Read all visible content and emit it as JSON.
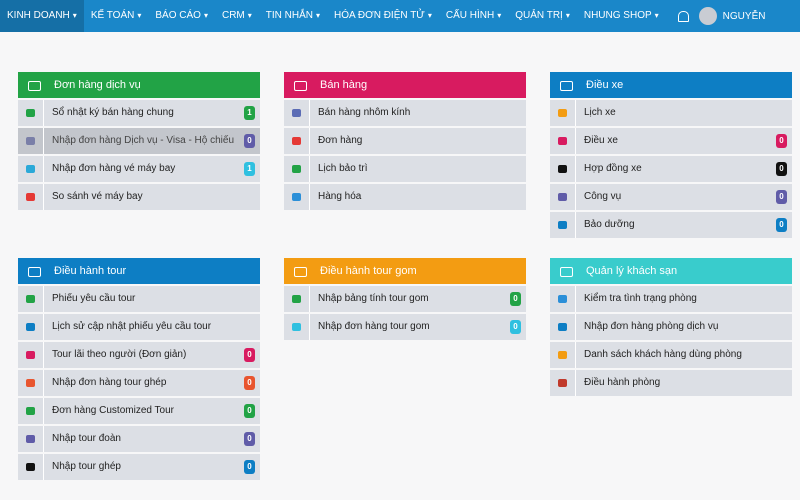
{
  "nav": {
    "items": [
      "KINH DOANH",
      "KẾ TOÁN",
      "BÁO CÁO",
      "CRM",
      "TIN NHẮN",
      "HÓA ĐƠN ĐIỆN TỬ",
      "CẤU HÌNH",
      "QUẢN TRỊ",
      "NHUNG SHOP"
    ],
    "user": "NGUYỄN"
  },
  "panels": [
    {
      "title": "Đơn hàng dịch vụ",
      "color": "#22a346",
      "items": [
        {
          "label": "Sổ nhật ký bán hàng chung",
          "icon": "#22a346",
          "badge": 1,
          "badge_color": "#22a346"
        },
        {
          "label": "Nhập đơn hàng Dịch vụ - Visa - Hộ chiếu",
          "icon": "#7a7fa8",
          "badge": 0,
          "badge_color": "#605ca8"
        },
        {
          "label": "Nhập đơn hàng vé máy bay",
          "icon": "#2ba9d8",
          "badge": 1,
          "badge_color": "#2fc0e0"
        },
        {
          "label": "So sánh vé máy bay",
          "icon": "#e53935"
        }
      ]
    },
    {
      "title": "Bán hàng",
      "color": "#d81b60",
      "items": [
        {
          "label": "Bán hàng nhôm kính",
          "icon": "#5b6cb5"
        },
        {
          "label": "Đơn hàng",
          "icon": "#e53935"
        },
        {
          "label": "Lịch bảo trì",
          "icon": "#22a346"
        },
        {
          "label": "Hàng hóa",
          "icon": "#2b8fd8"
        }
      ]
    },
    {
      "title": "Điều xe",
      "color": "#0d7ec4",
      "items": [
        {
          "label": "Lịch xe",
          "icon": "#f39c12"
        },
        {
          "label": "Điều xe",
          "icon": "#d81b60",
          "badge": 0,
          "badge_color": "#d81b60"
        },
        {
          "label": "Hợp đồng xe",
          "icon": "#111111",
          "badge": 0,
          "badge_color": "#111111"
        },
        {
          "label": "Công vụ",
          "icon": "#605ca8",
          "badge": 0,
          "badge_color": "#605ca8"
        },
        {
          "label": "Bảo dưỡng",
          "icon": "#0d7ec4",
          "badge": 0,
          "badge_color": "#0d7ec4"
        }
      ]
    },
    {
      "title": "Điều hành tour",
      "color": "#0d7ec4",
      "items": [
        {
          "label": "Phiếu yêu cầu tour",
          "icon": "#22a346"
        },
        {
          "label": "Lịch sử cập nhật phiếu yêu cầu tour",
          "icon": "#0d7ec4"
        },
        {
          "label": "Tour lãi theo người (Đơn giản)",
          "icon": "#d81b60",
          "badge": 0,
          "badge_color": "#d81b60"
        },
        {
          "label": "Nhập đơn hàng tour ghép",
          "icon": "#e8552f",
          "badge": 0,
          "badge_color": "#e8552f"
        },
        {
          "label": "Đơn hàng Customized Tour",
          "icon": "#22a346",
          "badge": 0,
          "badge_color": "#22a346"
        },
        {
          "label": "Nhập tour đoàn",
          "icon": "#605ca8",
          "badge": 0,
          "badge_color": "#605ca8"
        },
        {
          "label": "Nhập tour ghép",
          "icon": "#111111",
          "badge": 0,
          "badge_color": "#0d7ec4"
        }
      ]
    },
    {
      "title": "Điều hành tour gom",
      "color": "#f39c12",
      "items": [
        {
          "label": "Nhập bảng tính tour gom",
          "icon": "#22a346",
          "badge": 0,
          "badge_color": "#22a346"
        },
        {
          "label": "Nhập đơn hàng tour gom",
          "icon": "#2fc0e0",
          "badge": 0,
          "badge_color": "#2fc0e0"
        }
      ]
    },
    {
      "title": "Quản lý khách sạn",
      "color": "#39cccc",
      "items": [
        {
          "label": "Kiểm tra tình trạng phòng",
          "icon": "#2b8fd8"
        },
        {
          "label": "Nhập đơn hàng phòng dịch vụ",
          "icon": "#0d7ec4"
        },
        {
          "label": "Danh sách khách hàng dùng phòng",
          "icon": "#f39c12"
        },
        {
          "label": "Điều hành phòng",
          "icon": "#c0392b"
        }
      ]
    }
  ]
}
